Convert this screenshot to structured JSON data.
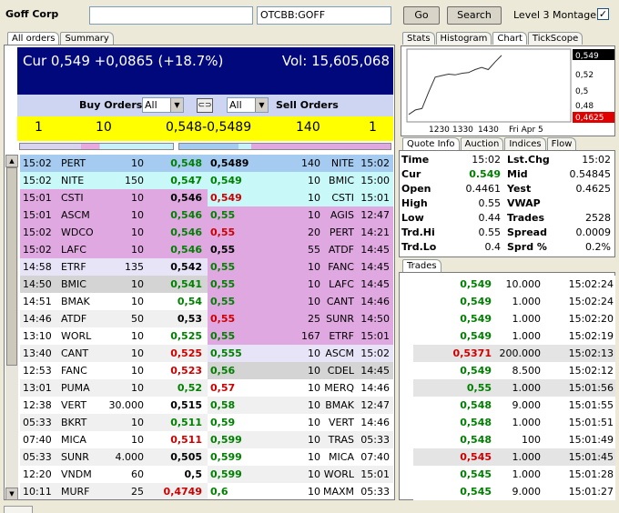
{
  "topbar": {
    "company": "Goff Corp",
    "symbol": "OTCBB:GOFF",
    "go": "Go",
    "search": "Search",
    "level3": "Level 3 Montage",
    "level3_checked": "✓"
  },
  "left_tabs": [
    "All orders",
    "Summary"
  ],
  "header": {
    "cur": "Cur 0,549 +0,0865 (+18.7%)",
    "vol": "Vol: 15,605,068"
  },
  "orderbar": {
    "buy_label": "Buy Orders",
    "sell_label": "Sell Orders",
    "buy_filter": "All",
    "sell_filter": "All",
    "link_icon": "link-icon"
  },
  "summary": {
    "bid_count": "1",
    "bid_size": "10",
    "spread": "0,548-0,5489",
    "ask_size": "140",
    "ask_count": "1"
  },
  "rows": [
    {
      "bg_bid": "#a6cbf0",
      "bg_ask": "#a6cbf0",
      "bt": "15:02",
      "bm": "PERT",
      "bs": "10",
      "bp": "0,548",
      "bpc": "green",
      "ap": "0,5489",
      "apc": "blk",
      "as": "140",
      "am": "NITE",
      "at": "15:02"
    },
    {
      "bg_bid": "#c8f8f8",
      "bg_ask": "#c8f8f8",
      "bt": "15:02",
      "bm": "NITE",
      "bs": "150",
      "bp": "0,547",
      "bpc": "green",
      "ap": "0,549",
      "apc": "green",
      "as": "10",
      "am": "BMIC",
      "at": "15:00"
    },
    {
      "bg_bid": "#e0a8e0",
      "bg_ask": "#c8f8f8",
      "bt": "15:01",
      "bm": "CSTI",
      "bs": "10",
      "bp": "0,546",
      "bpc": "blk",
      "ap": "0,549",
      "apc": "red",
      "as": "10",
      "am": "CSTI",
      "at": "15:01"
    },
    {
      "bg_bid": "#e0a8e0",
      "bg_ask": "#e0a8e0",
      "bt": "15:01",
      "bm": "ASCM",
      "bs": "10",
      "bp": "0,546",
      "bpc": "green",
      "ap": "0,55",
      "apc": "green",
      "as": "10",
      "am": "AGIS",
      "at": "12:47"
    },
    {
      "bg_bid": "#e0a8e0",
      "bg_ask": "#e0a8e0",
      "bt": "15:02",
      "bm": "WDCO",
      "bs": "10",
      "bp": "0,546",
      "bpc": "green",
      "ap": "0,55",
      "apc": "red",
      "as": "20",
      "am": "PERT",
      "at": "14:21"
    },
    {
      "bg_bid": "#e0a8e0",
      "bg_ask": "#e0a8e0",
      "bt": "15:02",
      "bm": "LAFC",
      "bs": "10",
      "bp": "0,546",
      "bpc": "green",
      "ap": "0,55",
      "apc": "blk",
      "as": "55",
      "am": "ATDF",
      "at": "14:45"
    },
    {
      "bg_bid": "#e8e4f8",
      "bg_ask": "#e0a8e0",
      "bt": "14:58",
      "bm": "ETRF",
      "bs": "135",
      "bp": "0,542",
      "bpc": "blk",
      "ap": "0,55",
      "apc": "green",
      "as": "10",
      "am": "FANC",
      "at": "14:45"
    },
    {
      "bg_bid": "#d4d4d4",
      "bg_ask": "#e0a8e0",
      "bt": "14:50",
      "bm": "BMIC",
      "bs": "10",
      "bp": "0,541",
      "bpc": "green",
      "ap": "0,55",
      "apc": "green",
      "as": "10",
      "am": "LAFC",
      "at": "14:45"
    },
    {
      "bg_bid": "#ffffff",
      "bg_ask": "#e0a8e0",
      "bt": "14:51",
      "bm": "BMAK",
      "bs": "10",
      "bp": "0,54",
      "bpc": "green",
      "ap": "0,55",
      "apc": "green",
      "as": "10",
      "am": "CANT",
      "at": "14:46"
    },
    {
      "bg_bid": "#f0f0f0",
      "bg_ask": "#e0a8e0",
      "bt": "14:46",
      "bm": "ATDF",
      "bs": "50",
      "bp": "0,53",
      "bpc": "blk",
      "ap": "0,55",
      "apc": "red",
      "as": "25",
      "am": "SUNR",
      "at": "14:50"
    },
    {
      "bg_bid": "#ffffff",
      "bg_ask": "#e0a8e0",
      "bt": "13:10",
      "bm": "WORL",
      "bs": "10",
      "bp": "0,525",
      "bpc": "green",
      "ap": "0,55",
      "apc": "green",
      "as": "167",
      "am": "ETRF",
      "at": "15:01"
    },
    {
      "bg_bid": "#f0f0f0",
      "bg_ask": "#e8e4f8",
      "bt": "13:40",
      "bm": "CANT",
      "bs": "10",
      "bp": "0,525",
      "bpc": "red",
      "ap": "0,555",
      "apc": "green",
      "as": "10",
      "am": "ASCM",
      "at": "15:02"
    },
    {
      "bg_bid": "#ffffff",
      "bg_ask": "#d4d4d4",
      "bt": "12:53",
      "bm": "FANC",
      "bs": "10",
      "bp": "0,523",
      "bpc": "red",
      "ap": "0,56",
      "apc": "green",
      "as": "10",
      "am": "CDEL",
      "at": "14:45"
    },
    {
      "bg_bid": "#f0f0f0",
      "bg_ask": "#ffffff",
      "bt": "13:01",
      "bm": "PUMA",
      "bs": "10",
      "bp": "0,52",
      "bpc": "green",
      "ap": "0,57",
      "apc": "red",
      "as": "10",
      "am": "MERQ",
      "at": "14:46"
    },
    {
      "bg_bid": "#ffffff",
      "bg_ask": "#f0f0f0",
      "bt": "12:38",
      "bm": "VERT",
      "bs": "30.000",
      "bp": "0,515",
      "bpc": "blk",
      "ap": "0,58",
      "apc": "green",
      "as": "10",
      "am": "BMAK",
      "at": "12:47"
    },
    {
      "bg_bid": "#f0f0f0",
      "bg_ask": "#ffffff",
      "bt": "05:33",
      "bm": "BKRT",
      "bs": "10",
      "bp": "0,511",
      "bpc": "green",
      "ap": "0,59",
      "apc": "green",
      "as": "10",
      "am": "VERT",
      "at": "14:46"
    },
    {
      "bg_bid": "#ffffff",
      "bg_ask": "#f0f0f0",
      "bt": "07:40",
      "bm": "MICA",
      "bs": "10",
      "bp": "0,511",
      "bpc": "red",
      "ap": "0,599",
      "apc": "green",
      "as": "10",
      "am": "TRAS",
      "at": "05:33"
    },
    {
      "bg_bid": "#f0f0f0",
      "bg_ask": "#ffffff",
      "bt": "05:33",
      "bm": "SUNR",
      "bs": "4.000",
      "bp": "0,505",
      "bpc": "blk",
      "ap": "0,599",
      "apc": "green",
      "as": "10",
      "am": "MICA",
      "at": "07:40"
    },
    {
      "bg_bid": "#ffffff",
      "bg_ask": "#f0f0f0",
      "bt": "12:20",
      "bm": "VNDM",
      "bs": "60",
      "bp": "0,5",
      "bpc": "blk",
      "ap": "0,599",
      "apc": "green",
      "as": "10",
      "am": "WORL",
      "at": "15:01"
    },
    {
      "bg_bid": "#f0f0f0",
      "bg_ask": "#ffffff",
      "bt": "10:11",
      "bm": "MURF",
      "bs": "25",
      "bp": "0,4749",
      "bpc": "red",
      "ap": "0,6",
      "apc": "green",
      "as": "10",
      "am": "MAXM",
      "at": "05:33"
    }
  ],
  "right_tabs": [
    "Stats",
    "Histogram",
    "Chart",
    "TickScope"
  ],
  "chart": {
    "y_labels": [
      "0,549",
      "0,52",
      "0,5",
      "0,48",
      "0,4625"
    ],
    "x_labels": [
      "1230",
      "1330",
      "1430",
      "Fri Apr 5"
    ],
    "current_label": "0,549",
    "low_label": "0,4625",
    "price_points": [
      0.47,
      0.476,
      0.478,
      0.5,
      0.52,
      0.522,
      0.524,
      0.523,
      0.525,
      0.526,
      0.53,
      0.533,
      0.53,
      0.54,
      0.549
    ],
    "ymin": 0.4625,
    "ymax": 0.555
  },
  "quote_tabs": [
    "Quote Info",
    "Auction",
    "Indices",
    "Flow"
  ],
  "quote": [
    {
      "l1": "Time",
      "v1": "15:02",
      "v1c": "",
      "l2": "Lst.Chg",
      "v2": "15:02"
    },
    {
      "l1": "Cur",
      "v1": "0.549",
      "v1c": "green",
      "l2": "Mid",
      "v2": "0.54845"
    },
    {
      "l1": "Open",
      "v1": "0.4461",
      "v1c": "",
      "l2": "Yest",
      "v2": "0.4625"
    },
    {
      "l1": "High",
      "v1": "0.55",
      "v1c": "",
      "l2": "VWAP",
      "v2": ""
    },
    {
      "l1": "Low",
      "v1": "0.44",
      "v1c": "",
      "l2": "Trades",
      "v2": "2528"
    },
    {
      "l1": "Trd.Hi",
      "v1": "0.55",
      "v1c": "",
      "l2": "Spread",
      "v2": "0.0009"
    },
    {
      "l1": "Trd.Lo",
      "v1": "0.4",
      "v1c": "",
      "l2": "Sprd %",
      "v2": "0.2%"
    }
  ],
  "trades_tab": "Trades",
  "trades": [
    {
      "p": "0,549",
      "c": "green",
      "s": "10.000",
      "t": "15:02:24",
      "bg": "#ffffff"
    },
    {
      "p": "0,549",
      "c": "green",
      "s": "1.000",
      "t": "15:02:24",
      "bg": "#ffffff"
    },
    {
      "p": "0,549",
      "c": "green",
      "s": "1.000",
      "t": "15:02:20",
      "bg": "#ffffff"
    },
    {
      "p": "0,549",
      "c": "green",
      "s": "1.000",
      "t": "15:02:19",
      "bg": "#ffffff"
    },
    {
      "p": "0,5371",
      "c": "red",
      "s": "200.000",
      "t": "15:02:13",
      "bg": "#e4e4e4"
    },
    {
      "p": "0,549",
      "c": "green",
      "s": "8.500",
      "t": "15:02:12",
      "bg": "#ffffff"
    },
    {
      "p": "0,55",
      "c": "green",
      "s": "1.000",
      "t": "15:01:56",
      "bg": "#e4e4e4"
    },
    {
      "p": "0,548",
      "c": "green",
      "s": "9.000",
      "t": "15:01:55",
      "bg": "#ffffff"
    },
    {
      "p": "0,548",
      "c": "green",
      "s": "1.000",
      "t": "15:01:51",
      "bg": "#ffffff"
    },
    {
      "p": "0,548",
      "c": "green",
      "s": "100",
      "t": "15:01:49",
      "bg": "#ffffff"
    },
    {
      "p": "0,545",
      "c": "red",
      "s": "1.000",
      "t": "15:01:45",
      "bg": "#e4e4e4"
    },
    {
      "p": "0,545",
      "c": "green",
      "s": "1.000",
      "t": "15:01:28",
      "bg": "#ffffff"
    },
    {
      "p": "0,545",
      "c": "green",
      "s": "9.000",
      "t": "15:01:27",
      "bg": "#ffffff"
    }
  ]
}
